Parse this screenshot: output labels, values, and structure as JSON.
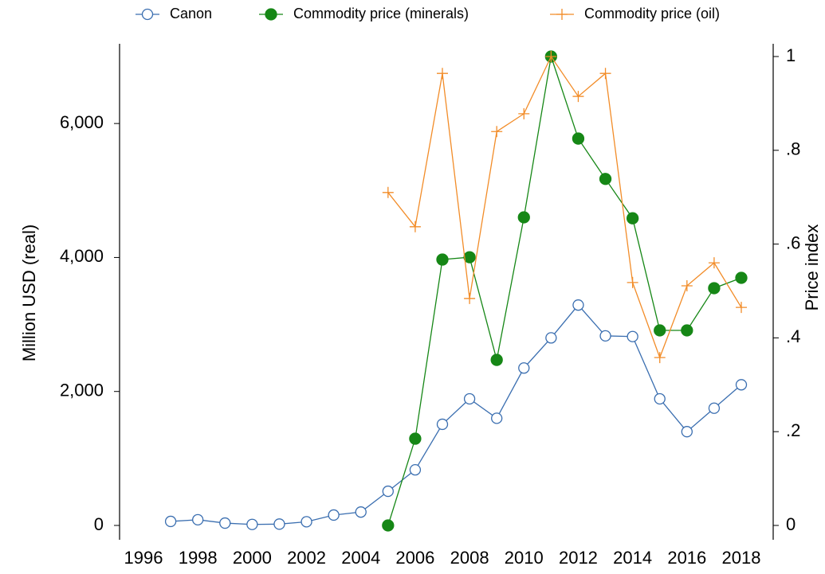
{
  "chart_data": {
    "type": "line",
    "x": [
      1997,
      1998,
      1999,
      2000,
      2001,
      2002,
      2003,
      2004,
      2005,
      2006,
      2007,
      2008,
      2009,
      2010,
      2011,
      2012,
      2013,
      2014,
      2015,
      2016,
      2017,
      2018
    ],
    "xlim": [
      1996,
      2018
    ],
    "xticks": [
      1996,
      1998,
      2000,
      2002,
      2004,
      2006,
      2008,
      2010,
      2012,
      2014,
      2016,
      2018
    ],
    "ylabel": "Million USD (real)",
    "ylim": [
      0,
      7000
    ],
    "yticks": [
      0,
      {
        "value": 2000,
        "label": "2,000"
      },
      {
        "value": 4000,
        "label": "4,000"
      },
      {
        "value": 6000,
        "label": "6,000"
      }
    ],
    "y2label": "Price index",
    "y2lim": [
      0,
      1
    ],
    "y2ticks": [
      0,
      {
        "value": 0.2,
        "label": ".2"
      },
      {
        "value": 0.4,
        "label": ".4"
      },
      {
        "value": 0.6,
        "label": ".6"
      },
      {
        "value": 0.8,
        "label": ".8"
      },
      1
    ],
    "legend": "top",
    "series": [
      {
        "name": "Canon",
        "color": "#3a6eb0",
        "marker": "open-circle",
        "values": [
          60,
          85,
          35,
          15,
          20,
          55,
          155,
          200,
          510,
          830,
          1510,
          1890,
          1600,
          2350,
          2800,
          3290,
          2830,
          2820,
          1890,
          1400,
          1750,
          2100
        ]
      },
      {
        "name": "Commodity price (minerals)",
        "color": "#168716",
        "marker": "filled-circle",
        "axis": "y2",
        "values": [
          null,
          null,
          null,
          null,
          null,
          null,
          null,
          null,
          0,
          0.185,
          0.567,
          0.572,
          0.353,
          0.657,
          1,
          0.825,
          0.739,
          0.655,
          0.416,
          0.416,
          0.506,
          0.528
        ]
      },
      {
        "name": "Commodity price (oil)",
        "color": "#f28c28",
        "marker": "plus",
        "axis": "y2",
        "values": [
          null,
          null,
          null,
          null,
          null,
          null,
          null,
          null,
          0.71,
          0.637,
          0.964,
          0.484,
          0.84,
          0.878,
          1,
          0.915,
          0.964,
          0.518,
          0.358,
          0.511,
          0.56,
          0.465
        ]
      }
    ]
  }
}
